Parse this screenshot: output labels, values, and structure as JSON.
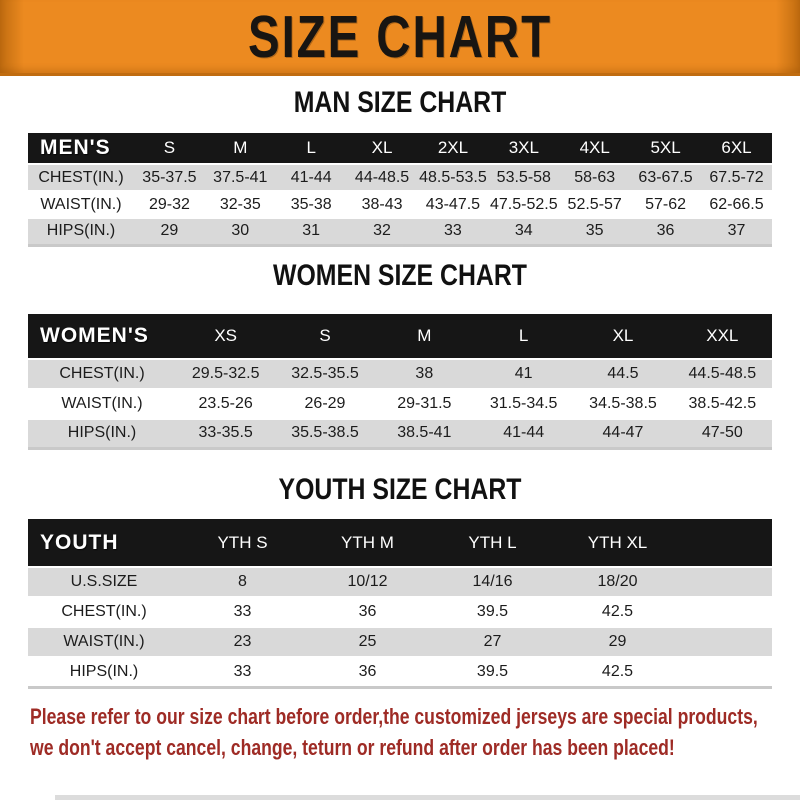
{
  "banner": {
    "title": "SIZE CHART"
  },
  "colors": {
    "banner_orange": "#EC8A20",
    "banner_edge": "#C06C10",
    "table_header_black": "#161616",
    "row_gray": "#D9D9D9",
    "footer_red": "#9E2B25"
  },
  "sections": [
    {
      "title": "MAN SIZE CHART",
      "header_label": "MEN'S",
      "columns": [
        "S",
        "M",
        "L",
        "XL",
        "2XL",
        "3XL",
        "4XL",
        "5XL",
        "6XL"
      ],
      "rows": [
        {
          "label": "CHEST(IN.)",
          "values": [
            "35-37.5",
            "37.5-41",
            "41-44",
            "44-48.5",
            "48.5-53.5",
            "53.5-58",
            "58-63",
            "63-67.5",
            "67.5-72"
          ]
        },
        {
          "label": "WAIST(IN.)",
          "values": [
            "29-32",
            "32-35",
            "35-38",
            "38-43",
            "43-47.5",
            "47.5-52.5",
            "52.5-57",
            "57-62",
            "62-66.5"
          ]
        },
        {
          "label": "HIPS(IN.)",
          "values": [
            "29",
            "30",
            "31",
            "32",
            "33",
            "34",
            "35",
            "36",
            "37"
          ]
        }
      ]
    },
    {
      "title": "WOMEN SIZE CHART",
      "header_label": "WOMEN'S",
      "columns": [
        "XS",
        "S",
        "M",
        "L",
        "XL",
        "XXL"
      ],
      "rows": [
        {
          "label": "CHEST(IN.)",
          "values": [
            "29.5-32.5",
            "32.5-35.5",
            "38",
            "41",
            "44.5",
            "44.5-48.5"
          ]
        },
        {
          "label": "WAIST(IN.)",
          "values": [
            "23.5-26",
            "26-29",
            "29-31.5",
            "31.5-34.5",
            "34.5-38.5",
            "38.5-42.5"
          ]
        },
        {
          "label": "HIPS(IN.)",
          "values": [
            "33-35.5",
            "35.5-38.5",
            "38.5-41",
            "41-44",
            "44-47",
            "47-50"
          ]
        }
      ]
    },
    {
      "title": "YOUTH SIZE CHART",
      "header_label": "YOUTH",
      "columns": [
        "YTH S",
        "YTH M",
        "YTH L",
        "YTH XL"
      ],
      "rows": [
        {
          "label": "U.S.SIZE",
          "values": [
            "8",
            "10/12",
            "14/16",
            "18/20"
          ]
        },
        {
          "label": "CHEST(IN.)",
          "values": [
            "33",
            "36",
            "39.5",
            "42.5"
          ]
        },
        {
          "label": "WAIST(IN.)",
          "values": [
            "23",
            "25",
            "27",
            "29"
          ]
        },
        {
          "label": "HIPS(IN.)",
          "values": [
            "33",
            "36",
            "39.5",
            "42.5"
          ]
        }
      ]
    }
  ],
  "footer": {
    "line1": "Please refer to our size chart before order,the customized jerseys are special products,",
    "line2": "we don't accept cancel, change, teturn or refund after order has been placed!"
  }
}
